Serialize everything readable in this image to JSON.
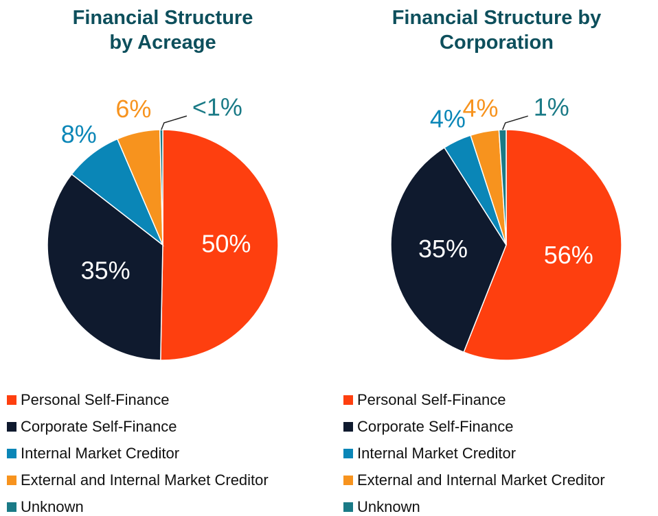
{
  "chart_data": [
    {
      "type": "pie",
      "title": "Financial Structure by Acreage",
      "categories": [
        "Personal Self-Finance",
        "Corporate Self-Finance",
        "Internal Market Creditor",
        "External and Internal Market Creditor",
        "Unknown"
      ],
      "values": [
        50,
        35,
        8,
        6,
        0.4
      ],
      "value_labels": [
        "50%",
        "35%",
        "8%",
        "6%",
        "<1%"
      ],
      "colors": [
        "#fe3f0f",
        "#0f1a2e",
        "#0a86b7",
        "#f7931e",
        "#1a7a86"
      ]
    },
    {
      "type": "pie",
      "title": "Financial Structure by Corporation",
      "categories": [
        "Personal Self-Finance",
        "Corporate Self-Finance",
        "Internal Market Creditor",
        "External and Internal Market Creditor",
        "Unknown"
      ],
      "values": [
        56,
        35,
        4,
        4,
        1
      ],
      "value_labels": [
        "56%",
        "35%",
        "4%",
        "4%",
        "1%"
      ],
      "colors": [
        "#fe3f0f",
        "#0f1a2e",
        "#0a86b7",
        "#f7931e",
        "#1a7a86"
      ]
    }
  ]
}
